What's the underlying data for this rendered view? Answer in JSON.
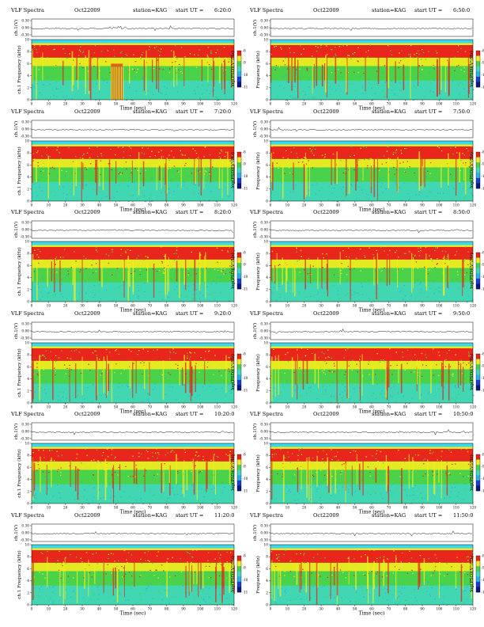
{
  "figure": {
    "title_left": "VLF Spectra",
    "date": "Oct22009",
    "station": "station=KAG",
    "start_prefix": "start UT ="
  },
  "chart_data": [
    {
      "type": "heatmap",
      "start_ut": "6:20:0",
      "column": "left",
      "row": 0,
      "waveform_ylabel": "ch.1(V)",
      "waveform_ticks": [
        "0.30",
        "0.00",
        "-0.30"
      ],
      "spectrum_ylabel": "ch.1 Frequency (kHz)",
      "ylim": [
        0,
        10
      ],
      "yticks": [
        "0",
        "2",
        "4",
        "6",
        "8",
        "10"
      ],
      "xlabel": "Time (sec)",
      "xlim": [
        0,
        120
      ],
      "xticks": [
        "0",
        "10",
        "20",
        "30",
        "40",
        "50",
        "60",
        "70",
        "80",
        "90",
        "100",
        "110",
        "120"
      ],
      "colorbar_label": "log(PSD)(V²/Hz)",
      "colorbar_ticks": [
        "-8",
        "-9",
        "-10",
        "-11"
      ],
      "bursts": [
        47,
        48,
        49,
        50,
        51,
        52,
        53,
        54
      ]
    },
    {
      "type": "heatmap",
      "start_ut": "6:50:0",
      "column": "right",
      "row": 0,
      "waveform_ylabel": "ch.1(V)",
      "waveform_ticks": [
        "0.30",
        "0.00",
        "-0.30"
      ],
      "spectrum_ylabel": "Frequency (kHz)",
      "ylim": [
        0,
        10
      ],
      "yticks": [
        "0",
        "2",
        "4",
        "6",
        "8",
        "10"
      ],
      "xlabel": "Time (sec)",
      "xlim": [
        0,
        120
      ],
      "xticks": [
        "0",
        "10",
        "20",
        "30",
        "40",
        "50",
        "60",
        "70",
        "80",
        "90",
        "100",
        "110",
        "120"
      ],
      "colorbar_label": "log(PSD)(V²/Hz)",
      "colorbar_ticks": [
        "-8",
        "-9",
        "-10",
        "-11"
      ],
      "bursts": []
    },
    {
      "type": "heatmap",
      "start_ut": "7:20:0",
      "column": "left",
      "row": 1,
      "waveform_ylabel": "ch.1(V)",
      "waveform_ticks": [
        "0.30",
        "0.00",
        "-0.30"
      ],
      "spectrum_ylabel": "ch.1 Frequency (kHz)",
      "ylim": [
        0,
        10
      ],
      "yticks": [
        "0",
        "2",
        "4",
        "6",
        "8",
        "10"
      ],
      "xlabel": "Time (sec)",
      "xlim": [
        0,
        120
      ],
      "xticks": [
        "0",
        "10",
        "20",
        "30",
        "40",
        "50",
        "60",
        "70",
        "80",
        "90",
        "100",
        "110",
        "120"
      ],
      "colorbar_label": "log(PSD)(V²/Hz)",
      "colorbar_ticks": [
        "-8",
        "-9",
        "-10",
        "-11"
      ],
      "bursts": []
    },
    {
      "type": "heatmap",
      "start_ut": "7:50:0",
      "column": "right",
      "row": 1,
      "waveform_ylabel": "ch.1(V)",
      "waveform_ticks": [
        "0.30",
        "0.00",
        "-0.30"
      ],
      "spectrum_ylabel": "Frequency (kHz)",
      "ylim": [
        0,
        10
      ],
      "yticks": [
        "0",
        "2",
        "4",
        "6",
        "8",
        "10"
      ],
      "xlabel": "Time (sec)",
      "xlim": [
        0,
        120
      ],
      "xticks": [
        "0",
        "10",
        "20",
        "30",
        "40",
        "50",
        "60",
        "70",
        "80",
        "90",
        "100",
        "110",
        "120"
      ],
      "colorbar_label": "log(PSD)(V²/Hz)",
      "colorbar_ticks": [
        "-8",
        "-9",
        "-10",
        "-11"
      ],
      "bursts": []
    },
    {
      "type": "heatmap",
      "start_ut": "8:20:0",
      "column": "left",
      "row": 2,
      "waveform_ylabel": "ch.1(V)",
      "waveform_ticks": [
        "0.30",
        "0.00",
        "-0.30"
      ],
      "spectrum_ylabel": "ch.1 Frequency (kHz)",
      "ylim": [
        0,
        10
      ],
      "yticks": [
        "0",
        "2",
        "4",
        "6",
        "8",
        "10"
      ],
      "xlabel": "Time (sec)",
      "xlim": [
        0,
        120
      ],
      "xticks": [
        "0",
        "10",
        "20",
        "30",
        "40",
        "50",
        "60",
        "70",
        "80",
        "90",
        "100",
        "110",
        "120"
      ],
      "colorbar_label": "log(PSD)(V²/Hz)",
      "colorbar_ticks": [
        "-8",
        "-9",
        "-10",
        "-11"
      ],
      "bursts": []
    },
    {
      "type": "heatmap",
      "start_ut": "8:50:0",
      "column": "right",
      "row": 2,
      "waveform_ylabel": "ch.1(V)",
      "waveform_ticks": [
        "0.30",
        "0.00",
        "-0.30"
      ],
      "spectrum_ylabel": "Frequency (kHz)",
      "ylim": [
        0,
        10
      ],
      "yticks": [
        "0",
        "2",
        "4",
        "6",
        "8",
        "10"
      ],
      "xlabel": "Time (sec)",
      "xlim": [
        0,
        120
      ],
      "xticks": [
        "0",
        "10",
        "20",
        "30",
        "40",
        "50",
        "60",
        "70",
        "80",
        "90",
        "100",
        "110",
        "120"
      ],
      "colorbar_label": "log(PSD)(V²/Hz)",
      "colorbar_ticks": [
        "-8",
        "-9",
        "-10",
        "-11"
      ],
      "bursts": []
    },
    {
      "type": "heatmap",
      "start_ut": "9:20:0",
      "column": "left",
      "row": 3,
      "waveform_ylabel": "ch.1(V)",
      "waveform_ticks": [
        "0.30",
        "0.00",
        "-0.30"
      ],
      "spectrum_ylabel": "ch.1 Frequency (kHz)",
      "ylim": [
        0,
        10
      ],
      "yticks": [
        "0",
        "2",
        "4",
        "6",
        "8",
        "10"
      ],
      "xlabel": "Time (sec)",
      "xlim": [
        0,
        120
      ],
      "xticks": [
        "0",
        "10",
        "20",
        "30",
        "40",
        "50",
        "60",
        "70",
        "80",
        "90",
        "100",
        "110",
        "120"
      ],
      "colorbar_label": "log(PSD)(V²/Hz)",
      "colorbar_ticks": [
        "-8",
        "-9",
        "-10",
        "-11"
      ],
      "bursts": []
    },
    {
      "type": "heatmap",
      "start_ut": "9:50:0",
      "column": "right",
      "row": 3,
      "waveform_ylabel": "ch.1(V)",
      "waveform_ticks": [
        "0.30",
        "0.00",
        "-0.30"
      ],
      "spectrum_ylabel": "Frequency (kHz)",
      "ylim": [
        0,
        10
      ],
      "yticks": [
        "0",
        "2",
        "4",
        "6",
        "8",
        "10"
      ],
      "xlabel": "Time (sec)",
      "xlim": [
        0,
        120
      ],
      "xticks": [
        "0",
        "10",
        "20",
        "30",
        "40",
        "50",
        "60",
        "70",
        "80",
        "90",
        "100",
        "110",
        "120"
      ],
      "colorbar_label": "log(PSD)(V²/Hz)",
      "colorbar_ticks": [
        "-8",
        "-9",
        "-10",
        "-11"
      ],
      "bursts": []
    },
    {
      "type": "heatmap",
      "start_ut": "10:20:0",
      "column": "left",
      "row": 4,
      "waveform_ylabel": "ch.1(V)",
      "waveform_ticks": [
        "0.30",
        "0.00",
        "-0.30"
      ],
      "spectrum_ylabel": "ch.1 Frequency (kHz)",
      "ylim": [
        0,
        10
      ],
      "yticks": [
        "0",
        "2",
        "4",
        "6",
        "8",
        "10"
      ],
      "xlabel": "Time (sec)",
      "xlim": [
        0,
        120
      ],
      "xticks": [
        "0",
        "10",
        "20",
        "30",
        "40",
        "50",
        "60",
        "70",
        "80",
        "90",
        "100",
        "110",
        "120"
      ],
      "colorbar_label": "log(PSD)(V²/Hz)",
      "colorbar_ticks": [
        "-8",
        "-9",
        "-10",
        "-11"
      ],
      "bursts": []
    },
    {
      "type": "heatmap",
      "start_ut": "10:50:0",
      "column": "right",
      "row": 4,
      "waveform_ylabel": "ch.1(V)",
      "waveform_ticks": [
        "0.30",
        "0.00",
        "-0.30"
      ],
      "spectrum_ylabel": "Frequency (kHz)",
      "ylim": [
        0,
        10
      ],
      "yticks": [
        "0",
        "2",
        "4",
        "6",
        "8",
        "10"
      ],
      "xlabel": "Time (sec)",
      "xlim": [
        0,
        120
      ],
      "xticks": [
        "0",
        "10",
        "20",
        "30",
        "40",
        "50",
        "60",
        "70",
        "80",
        "90",
        "100",
        "110",
        "120"
      ],
      "colorbar_label": "log(PSD)(V²/Hz)",
      "colorbar_ticks": [
        "-8",
        "-9",
        "-10",
        "-11"
      ],
      "bursts": []
    },
    {
      "type": "heatmap",
      "start_ut": "11:20:0",
      "column": "left",
      "row": 5,
      "waveform_ylabel": "ch.1(V)",
      "waveform_ticks": [
        "0.30",
        "0.00",
        "-0.30"
      ],
      "spectrum_ylabel": "ch.1 Frequency (kHz)",
      "ylim": [
        0,
        10
      ],
      "yticks": [
        "0",
        "2",
        "4",
        "6",
        "8",
        "10"
      ],
      "xlabel": "Time (sec)",
      "xlim": [
        0,
        120
      ],
      "xticks": [
        "0",
        "10",
        "20",
        "30",
        "40",
        "50",
        "60",
        "70",
        "80",
        "90",
        "100",
        "110",
        "120"
      ],
      "colorbar_label": "log(PSD)(V²/Hz)",
      "colorbar_ticks": [
        "-8",
        "-9",
        "-10",
        "-11"
      ],
      "bursts": []
    },
    {
      "type": "heatmap",
      "start_ut": "11:50:0",
      "column": "right",
      "row": 5,
      "waveform_ylabel": "ch.1(V)",
      "waveform_ticks": [
        "0.30",
        "0.00",
        "-0.30"
      ],
      "spectrum_ylabel": "Frequency (kHz)",
      "ylim": [
        0,
        10
      ],
      "yticks": [
        "0",
        "2",
        "4",
        "6",
        "8",
        "10"
      ],
      "xlabel": "Time (sec)",
      "xlim": [
        0,
        120
      ],
      "xticks": [
        "0",
        "10",
        "20",
        "30",
        "40",
        "50",
        "60",
        "70",
        "80",
        "90",
        "100",
        "110",
        "120"
      ],
      "colorbar_label": "log(PSD)(V²/Hz)",
      "colorbar_ticks": [
        "-8",
        "-9",
        "-10",
        "-11"
      ],
      "bursts": []
    }
  ],
  "colors": {
    "spectrum_high": "#e8261b",
    "spectrum_mid": "#f5ec1e",
    "spectrum_low": "#4ad24a",
    "spectrum_floor": "#41d8c6",
    "spectrum_min": "#2db0e6",
    "band_top": "#3fd8e8"
  }
}
